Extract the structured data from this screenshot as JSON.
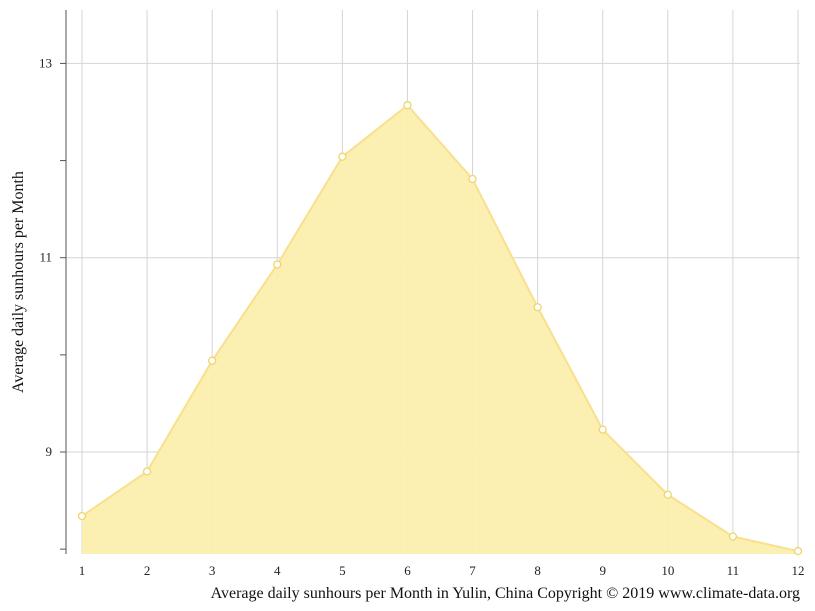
{
  "chart_data": {
    "type": "area",
    "title": "",
    "xlabel": "",
    "ylabel": "Average daily sunhours per Month",
    "caption": "Average daily sunhours per Month in Yulin, China Copyright © 2019 www.climate-data.org",
    "x": [
      1,
      2,
      3,
      4,
      5,
      6,
      7,
      8,
      9,
      10,
      11,
      12
    ],
    "x_tick_labels": [
      "1",
      "2",
      "3",
      "4",
      "5",
      "6",
      "7",
      "8",
      "9",
      "10",
      "11",
      "12"
    ],
    "series": [
      {
        "values": [
          8.34,
          8.8,
          9.94,
          10.93,
          12.04,
          12.57,
          11.81,
          10.49,
          9.23,
          8.56,
          8.13,
          7.98
        ]
      }
    ],
    "ylim": [
      7.95,
      13.55
    ],
    "y_major_ticks": [
      9,
      11,
      13
    ],
    "y_major_tick_labels": [
      "9",
      "11",
      "13"
    ],
    "y_minor_ticks": [
      8,
      10,
      12
    ],
    "grid": true,
    "colors": {
      "fill": "#fbeead",
      "line": "#f8e08e",
      "marker_fill": "#ffffff",
      "marker_stroke": "#efd56a",
      "grid": "#d4d4d4",
      "axis": "#555555"
    }
  }
}
